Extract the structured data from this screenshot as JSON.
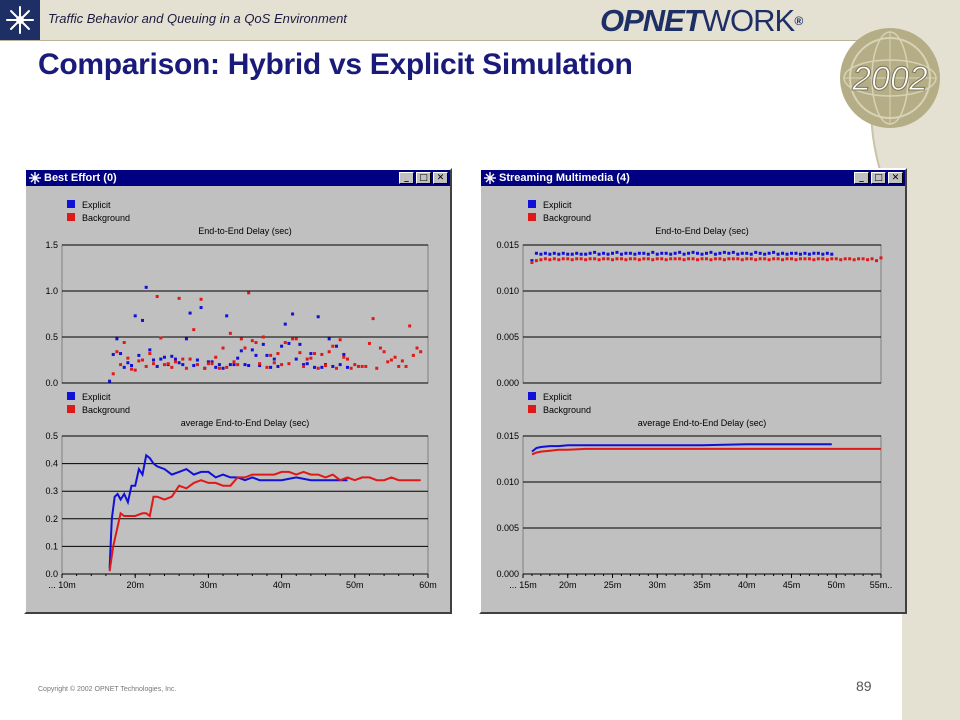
{
  "header": {
    "subtitle": "Traffic Behavior and Queuing in a QoS Environment",
    "logo_bold": "OPNET",
    "logo_rest": "WORK",
    "logo_mark": "®",
    "badge_year": "2002"
  },
  "slide": {
    "title": "Comparison:  Hybrid vs Explicit Simulation",
    "copyright": "Copyright © 2002 OPNET Technologies, Inc.",
    "page_number": "89"
  },
  "colors": {
    "explicit": "#1010d8",
    "background": "#e01818",
    "panel": "#c0c0c0",
    "titlebar": "#000080",
    "slide_title": "#1a1a7a"
  },
  "windows": [
    {
      "title": "Best Effort (0)",
      "buttons": [
        "_",
        "□",
        "✕"
      ]
    },
    {
      "title": "Streaming Multimedia (4)",
      "buttons": [
        "_",
        "□",
        "✕"
      ]
    }
  ],
  "chart_data": [
    {
      "window": "Best Effort (0)",
      "type": "scatter",
      "title": "End-to-End Delay (sec)",
      "legend": [
        "Explicit",
        "Background"
      ],
      "legend_position": "top-left",
      "ylim": [
        0,
        1.5
      ],
      "yticks": [
        "0.0",
        "0.5",
        "1.0",
        "1.5"
      ],
      "xlim": [
        10,
        60
      ],
      "grid": true,
      "series": [
        {
          "name": "Explicit",
          "x": [
            16.5,
            17,
            17.5,
            18,
            18.5,
            19,
            19.5,
            20,
            20.5,
            21,
            21.5,
            22,
            22.5,
            23,
            23.5,
            24,
            24.5,
            25,
            25.5,
            26,
            26.5,
            27,
            27.5,
            28,
            28.5,
            29,
            29.5,
            30,
            30.5,
            31,
            31.5,
            32,
            32.5,
            33,
            33.5,
            34,
            34.5,
            35,
            35.5,
            36,
            36.5,
            37,
            37.5,
            38,
            38.5,
            39,
            39.5,
            40,
            40.5,
            41,
            41.5,
            42,
            42.5,
            43,
            43.5,
            44,
            44.5,
            45,
            45.5,
            46,
            46.5,
            47,
            47.5,
            48,
            48.5,
            49
          ],
          "y": [
            0.02,
            0.31,
            0.48,
            0.32,
            0.17,
            0.22,
            0.19,
            0.73,
            0.3,
            0.68,
            1.04,
            0.36,
            0.25,
            0.18,
            0.26,
            0.28,
            0.2,
            0.29,
            0.26,
            0.22,
            0.2,
            0.48,
            0.76,
            0.19,
            0.25,
            0.82,
            0.16,
            0.23,
            0.23,
            0.17,
            0.2,
            0.16,
            0.73,
            0.2,
            0.2,
            0.27,
            0.35,
            0.2,
            0.19,
            0.36,
            0.3,
            0.19,
            0.42,
            0.3,
            0.17,
            0.26,
            0.18,
            0.4,
            0.64,
            0.43,
            0.75,
            0.26,
            0.42,
            0.2,
            0.21,
            0.32,
            0.17,
            0.72,
            0.17,
            0.2,
            0.48,
            0.18,
            0.4,
            0.2,
            0.31,
            0.17
          ]
        },
        {
          "name": "Background",
          "x": [
            17,
            17.5,
            18,
            18.5,
            19,
            19.5,
            20,
            20.5,
            21,
            21.5,
            22,
            22.5,
            23,
            23.5,
            24,
            24.5,
            25,
            25.5,
            26,
            26.5,
            27,
            27.5,
            28,
            28.5,
            29,
            29.5,
            30,
            30.5,
            31,
            31.5,
            32,
            32.5,
            33,
            33.5,
            34,
            34.5,
            35,
            35.5,
            36,
            36.5,
            37,
            37.5,
            38,
            38.5,
            39,
            39.5,
            40,
            40.5,
            41,
            41.5,
            42,
            42.5,
            43,
            43.5,
            44,
            44.5,
            45,
            45.5,
            46,
            46.5,
            47,
            47.5,
            48,
            48.5,
            49,
            49.5,
            50,
            50.5,
            51,
            51.5,
            52,
            52.5,
            53,
            53.5,
            54,
            54.5,
            55,
            55.5,
            56,
            56.5,
            57,
            57.5,
            58,
            58.5,
            59
          ],
          "y": [
            0.1,
            0.34,
            0.2,
            0.44,
            0.27,
            0.15,
            0.14,
            0.24,
            0.25,
            0.18,
            0.32,
            0.21,
            0.94,
            0.49,
            0.2,
            0.21,
            0.17,
            0.23,
            0.92,
            0.26,
            0.16,
            0.26,
            0.58,
            0.2,
            0.91,
            0.16,
            0.21,
            0.21,
            0.28,
            0.16,
            0.38,
            0.17,
            0.54,
            0.23,
            0.2,
            0.48,
            0.38,
            0.98,
            0.46,
            0.44,
            0.21,
            0.5,
            0.17,
            0.3,
            0.22,
            0.32,
            0.2,
            0.44,
            0.21,
            0.48,
            0.48,
            0.33,
            0.18,
            0.26,
            0.27,
            0.32,
            0.16,
            0.31,
            0.19,
            0.34,
            0.4,
            0.16,
            0.47,
            0.28,
            0.26,
            0.16,
            0.2,
            0.18,
            0.18,
            0.18,
            0.43,
            0.7,
            0.16,
            0.38,
            0.34,
            0.23,
            0.25,
            0.28,
            0.18,
            0.24,
            0.18,
            0.62,
            0.3,
            0.38,
            0.34
          ]
        }
      ]
    },
    {
      "window": "Best Effort (0)",
      "type": "line",
      "title": "average End-to-End Delay (sec)",
      "legend": [
        "Explicit",
        "Background"
      ],
      "legend_position": "top-left",
      "ylim": [
        0,
        0.5
      ],
      "yticks": [
        "0.0",
        "0.1",
        "0.2",
        "0.3",
        "0.4",
        "0.5"
      ],
      "xlim": [
        10,
        60
      ],
      "xticks": [
        "... 10m",
        "20m",
        "30m",
        "40m",
        "50m",
        "60m"
      ],
      "grid": true,
      "series": [
        {
          "name": "Explicit",
          "x": [
            16.5,
            16.8,
            17.2,
            17.6,
            18,
            18.5,
            19,
            19.5,
            20,
            20.5,
            21,
            21.5,
            22,
            22.5,
            23,
            24,
            25,
            26,
            27,
            28,
            29,
            30,
            31,
            32,
            33,
            34,
            35,
            36,
            37,
            38,
            39,
            40,
            42,
            44,
            46,
            48,
            49
          ],
          "y": [
            0.02,
            0.2,
            0.28,
            0.29,
            0.27,
            0.29,
            0.26,
            0.32,
            0.32,
            0.38,
            0.36,
            0.43,
            0.42,
            0.4,
            0.39,
            0.38,
            0.36,
            0.37,
            0.38,
            0.36,
            0.37,
            0.37,
            0.35,
            0.36,
            0.35,
            0.35,
            0.34,
            0.35,
            0.34,
            0.34,
            0.34,
            0.34,
            0.35,
            0.34,
            0.34,
            0.34,
            0.34
          ]
        },
        {
          "name": "Background",
          "x": [
            16.5,
            17,
            17.5,
            18,
            18.5,
            19,
            20,
            21,
            21.5,
            22,
            22.5,
            23,
            24,
            25,
            26,
            27,
            28,
            29,
            30,
            31,
            32,
            33,
            34,
            35,
            36,
            37,
            38,
            39,
            40,
            41,
            42,
            43,
            44,
            45,
            46,
            47,
            48,
            49,
            50,
            51,
            52,
            53,
            54,
            55,
            56,
            57,
            58,
            59
          ],
          "y": [
            0.01,
            0.1,
            0.16,
            0.22,
            0.21,
            0.21,
            0.21,
            0.22,
            0.22,
            0.21,
            0.28,
            0.28,
            0.27,
            0.28,
            0.32,
            0.31,
            0.33,
            0.34,
            0.33,
            0.33,
            0.32,
            0.32,
            0.35,
            0.35,
            0.36,
            0.36,
            0.36,
            0.36,
            0.37,
            0.37,
            0.36,
            0.37,
            0.36,
            0.36,
            0.35,
            0.36,
            0.34,
            0.35,
            0.34,
            0.35,
            0.35,
            0.34,
            0.34,
            0.35,
            0.34,
            0.34,
            0.34,
            0.34
          ]
        }
      ]
    },
    {
      "window": "Streaming Multimedia (4)",
      "type": "scatter",
      "title": "End-to-End Delay (sec)",
      "legend": [
        "Explicit",
        "Background"
      ],
      "legend_position": "top-left",
      "ylim": [
        0,
        0.015
      ],
      "yticks": [
        "0.000",
        "0.005",
        "0.010",
        "0.015"
      ],
      "xlim": [
        15,
        55
      ],
      "grid": true,
      "series": [
        {
          "name": "Explicit",
          "x": [
            16,
            16.5,
            17,
            17.5,
            18,
            18.5,
            19,
            19.5,
            20,
            20.5,
            21,
            21.5,
            22,
            22.5,
            23,
            23.5,
            24,
            24.5,
            25,
            25.5,
            26,
            26.5,
            27,
            27.5,
            28,
            28.5,
            29,
            29.5,
            30,
            30.5,
            31,
            31.5,
            32,
            32.5,
            33,
            33.5,
            34,
            34.5,
            35,
            35.5,
            36,
            36.5,
            37,
            37.5,
            38,
            38.5,
            39,
            39.5,
            40,
            40.5,
            41,
            41.5,
            42,
            42.5,
            43,
            43.5,
            44,
            44.5,
            45,
            45.5,
            46,
            46.5,
            47,
            47.5,
            48,
            48.5,
            49,
            49.5
          ],
          "y": [
            0.0133,
            0.0141,
            0.014,
            0.0141,
            0.014,
            0.0141,
            0.014,
            0.0141,
            0.014,
            0.014,
            0.0141,
            0.014,
            0.014,
            0.0141,
            0.0142,
            0.014,
            0.0141,
            0.014,
            0.0141,
            0.0142,
            0.014,
            0.0141,
            0.0141,
            0.014,
            0.0141,
            0.0141,
            0.014,
            0.0142,
            0.014,
            0.0141,
            0.0141,
            0.014,
            0.0141,
            0.0142,
            0.014,
            0.0141,
            0.0142,
            0.0141,
            0.014,
            0.0141,
            0.0142,
            0.014,
            0.0141,
            0.0142,
            0.0141,
            0.0142,
            0.014,
            0.0141,
            0.0141,
            0.014,
            0.0142,
            0.0141,
            0.014,
            0.0141,
            0.0142,
            0.014,
            0.0141,
            0.014,
            0.0141,
            0.0141,
            0.014,
            0.0141,
            0.014,
            0.0141,
            0.0141,
            0.014,
            0.0141,
            0.014
          ]
        },
        {
          "name": "Background",
          "x": [
            16,
            16.5,
            17,
            17.5,
            18,
            18.5,
            19,
            19.5,
            20,
            20.5,
            21,
            21.5,
            22,
            22.5,
            23,
            23.5,
            24,
            24.5,
            25,
            25.5,
            26,
            26.5,
            27,
            27.5,
            28,
            28.5,
            29,
            29.5,
            30,
            30.5,
            31,
            31.5,
            32,
            32.5,
            33,
            33.5,
            34,
            34.5,
            35,
            35.5,
            36,
            36.5,
            37,
            37.5,
            38,
            38.5,
            39,
            39.5,
            40,
            40.5,
            41,
            41.5,
            42,
            42.5,
            43,
            43.5,
            44,
            44.5,
            45,
            45.5,
            46,
            46.5,
            47,
            47.5,
            48,
            48.5,
            49,
            49.5,
            50,
            50.5,
            51,
            51.5,
            52,
            52.5,
            53,
            53.5,
            54,
            54.5,
            55
          ],
          "y": [
            0.0131,
            0.0133,
            0.0134,
            0.0135,
            0.0134,
            0.0135,
            0.0134,
            0.0135,
            0.0135,
            0.0134,
            0.0135,
            0.0135,
            0.0134,
            0.0135,
            0.0135,
            0.0134,
            0.0135,
            0.0135,
            0.0134,
            0.0135,
            0.0135,
            0.0134,
            0.0135,
            0.0135,
            0.0134,
            0.0135,
            0.0135,
            0.0134,
            0.0135,
            0.0135,
            0.0134,
            0.0135,
            0.0135,
            0.0135,
            0.0134,
            0.0135,
            0.0135,
            0.0134,
            0.0135,
            0.0135,
            0.0134,
            0.0135,
            0.0135,
            0.0134,
            0.0135,
            0.0135,
            0.0135,
            0.0134,
            0.0135,
            0.0135,
            0.0134,
            0.0135,
            0.0135,
            0.0134,
            0.0135,
            0.0135,
            0.0134,
            0.0135,
            0.0135,
            0.0134,
            0.0135,
            0.0135,
            0.0135,
            0.0134,
            0.0135,
            0.0135,
            0.0134,
            0.0135,
            0.0135,
            0.0134,
            0.0135,
            0.0135,
            0.0134,
            0.0135,
            0.0135,
            0.0134,
            0.0135,
            0.0133,
            0.0136
          ]
        }
      ]
    },
    {
      "window": "Streaming Multimedia (4)",
      "type": "line",
      "title": "average End-to-End Delay (sec)",
      "legend": [
        "Explicit",
        "Background"
      ],
      "legend_position": "top-left",
      "ylim": [
        0,
        0.015
      ],
      "yticks": [
        "0.000",
        "0.005",
        "0.010",
        "0.015"
      ],
      "xlim": [
        15,
        55
      ],
      "xticks": [
        "... 15m",
        "20m",
        "25m",
        "30m",
        "35m",
        "40m",
        "45m",
        "50m",
        "55m.."
      ],
      "grid": true,
      "series": [
        {
          "name": "Explicit",
          "x": [
            16,
            16.5,
            17,
            18,
            19,
            20,
            22,
            25,
            30,
            35,
            40,
            45,
            49.5
          ],
          "y": [
            0.0133,
            0.0137,
            0.0138,
            0.0139,
            0.0139,
            0.014,
            0.014,
            0.014,
            0.014,
            0.014,
            0.0141,
            0.0141,
            0.0141
          ]
        },
        {
          "name": "Background",
          "x": [
            16,
            16.5,
            17,
            18,
            19,
            20,
            22,
            25,
            30,
            35,
            40,
            45,
            50,
            55
          ],
          "y": [
            0.013,
            0.0132,
            0.0133,
            0.0134,
            0.0135,
            0.0135,
            0.0136,
            0.0136,
            0.0136,
            0.0136,
            0.0136,
            0.0136,
            0.0136,
            0.0136
          ]
        }
      ]
    }
  ]
}
